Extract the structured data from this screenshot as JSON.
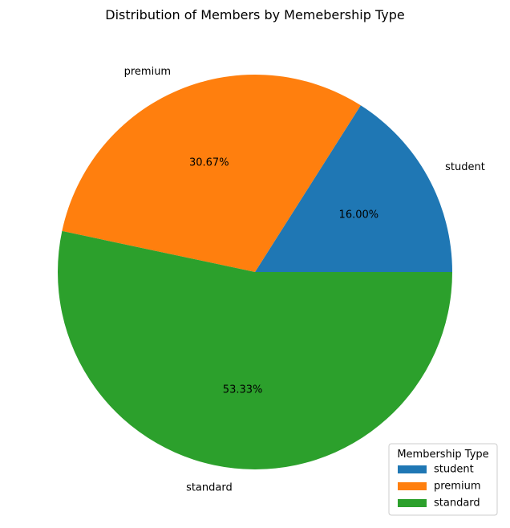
{
  "chart_data": {
    "type": "pie",
    "title": "Distribution of Members by Memebership Type",
    "slices": [
      {
        "label": "student",
        "value": 16.0,
        "value_label": "16.00%",
        "color": "#1f77b4"
      },
      {
        "label": "premium",
        "value": 30.67,
        "value_label": "30.67%",
        "color": "#ff7f0e"
      },
      {
        "label": "standard",
        "value": 53.33,
        "value_label": "53.33%",
        "color": "#2ca02c"
      }
    ],
    "start_angle_deg": 0,
    "direction": "counterclockwise",
    "legend": {
      "title": "Membership Type",
      "placement": "lower-right",
      "entries": [
        "student",
        "premium",
        "standard"
      ]
    }
  }
}
